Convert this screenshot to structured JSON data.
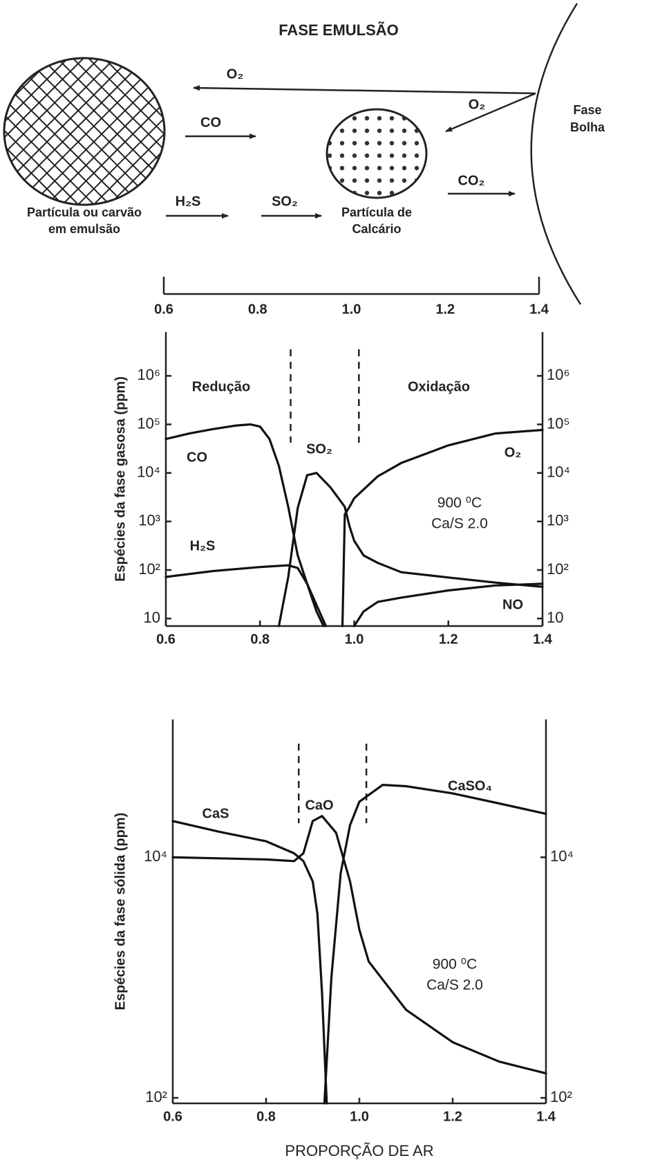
{
  "diagram": {
    "title": "FASE EMULSÃO",
    "bubble_phase": [
      "Fase",
      "Bolha"
    ],
    "coal_particle": [
      "Partícula ou carvão",
      "em emulsão"
    ],
    "limestone_particle": [
      "Partícula de",
      "Calcário"
    ],
    "arrows": [
      "O₂",
      "O₂",
      "CO",
      "H₂S",
      "SO₂",
      "CO₂"
    ],
    "xlim": [
      0.6,
      1.4
    ],
    "xticks": [
      0.6,
      0.8,
      {
        "value": 1,
        "label": "1.0"
      },
      1.2,
      1.4
    ]
  },
  "chart_data": [
    {
      "type": "line",
      "ylabel": "Espécies da fase gasosa (ppm)",
      "log_y": true,
      "right_axis": true,
      "xlim": [
        0.6,
        1.4
      ],
      "xticks": [
        0.6,
        0.8,
        {
          "value": 1,
          "label": "1.0"
        },
        1.2,
        1.4
      ],
      "ylim": [
        7,
        8000000
      ],
      "yticks": [
        10,
        {
          "value": 100,
          "label": "10²"
        },
        {
          "value": 1000,
          "label": "10³"
        },
        {
          "value": 10000,
          "label": "10⁴"
        },
        {
          "value": 100000,
          "label": "10⁵"
        },
        {
          "value": 1000000,
          "label": "10⁶"
        }
      ],
      "regions": [
        "Redução",
        "Oxidação"
      ],
      "boundaries": [
        0.865,
        1.01
      ],
      "annotations": [
        "900 ⁰C",
        "Ca/S   2.0"
      ],
      "series": [
        {
          "name": "CO",
          "color": "#111111",
          "x": [
            0.6,
            0.65,
            0.7,
            0.75,
            0.78,
            0.8,
            0.82,
            0.84,
            0.86,
            0.88,
            0.9,
            0.92,
            0.935
          ],
          "values": [
            50000,
            65000,
            80000,
            95000,
            100000,
            90000,
            50000,
            14000,
            2000,
            200,
            52,
            14,
            7
          ]
        },
        {
          "name": "H₂S",
          "color": "#111111",
          "x": [
            0.6,
            0.7,
            0.8,
            0.86,
            0.88,
            0.9,
            0.92,
            0.94
          ],
          "values": [
            72,
            95,
            115,
            125,
            110,
            52,
            19,
            7
          ]
        },
        {
          "name": "SO₂",
          "color": "#111111",
          "x": [
            0.84,
            0.86,
            0.88,
            0.9,
            0.92,
            0.95,
            0.98,
            0.99,
            1.0,
            1.02,
            1.05,
            1.1,
            1.2,
            1.3,
            1.4
          ],
          "values": [
            7,
            72,
            1900,
            9000,
            10000,
            5000,
            2000,
            800,
            400,
            200,
            140,
            90,
            70,
            55,
            45
          ]
        },
        {
          "name": "O₂",
          "color": "#111111",
          "x": [
            0.975,
            0.98,
            0.99,
            1.0,
            1.05,
            1.1,
            1.2,
            1.3,
            1.4
          ],
          "values": [
            7,
            1400,
            2000,
            3000,
            8500,
            16000,
            37000,
            65000,
            77000
          ]
        },
        {
          "name": "NO",
          "color": "#111111",
          "x": [
            1.0,
            1.02,
            1.05,
            1.1,
            1.2,
            1.3,
            1.4
          ],
          "values": [
            7,
            14,
            22,
            27,
            38,
            48,
            52
          ]
        }
      ]
    },
    {
      "type": "line",
      "ylabel": "Espécies da fase sólida (ppm)",
      "xlabel": "PROPORÇÃO DE AR",
      "log_y": true,
      "right_axis": true,
      "xlim": [
        0.6,
        1.4
      ],
      "xticks": [
        0.6,
        0.8,
        {
          "value": 1,
          "label": "1.0"
        },
        1.2,
        1.4
      ],
      "ylim": [
        90,
        140000
      ],
      "yticks": [
        {
          "value": 100,
          "label": "10²"
        },
        {
          "value": 10000,
          "label": "10⁴"
        }
      ],
      "boundaries": [
        0.87,
        1.015
      ],
      "annotations": [
        "900 ⁰C",
        "Ca/S   2.0"
      ],
      "series": [
        {
          "name": "CaS",
          "color": "#111111",
          "x": [
            0.6,
            0.7,
            0.8,
            0.86,
            0.88,
            0.9,
            0.91,
            0.92,
            0.93
          ],
          "values": [
            20000,
            16300,
            13600,
            10800,
            9300,
            6300,
            3400,
            740,
            90
          ]
        },
        {
          "name": "CaO",
          "color": "#111111",
          "x": [
            0.6,
            0.7,
            0.8,
            0.86,
            0.88,
            0.9,
            0.92,
            0.95,
            0.98,
            1.0,
            1.02,
            1.1,
            1.2,
            1.3,
            1.4
          ],
          "values": [
            10000,
            9800,
            9600,
            9300,
            10800,
            20000,
            22000,
            16000,
            6300,
            2500,
            1360,
            540,
            290,
            200,
            160
          ]
        },
        {
          "name": "CaSO₄",
          "color": "#111111",
          "x": [
            0.925,
            0.94,
            0.96,
            0.98,
            1.0,
            1.05,
            1.1,
            1.2,
            1.3,
            1.4
          ],
          "values": [
            90,
            1000,
            7400,
            18500,
            29000,
            40000,
            39000,
            34000,
            28000,
            23000
          ]
        }
      ]
    }
  ]
}
